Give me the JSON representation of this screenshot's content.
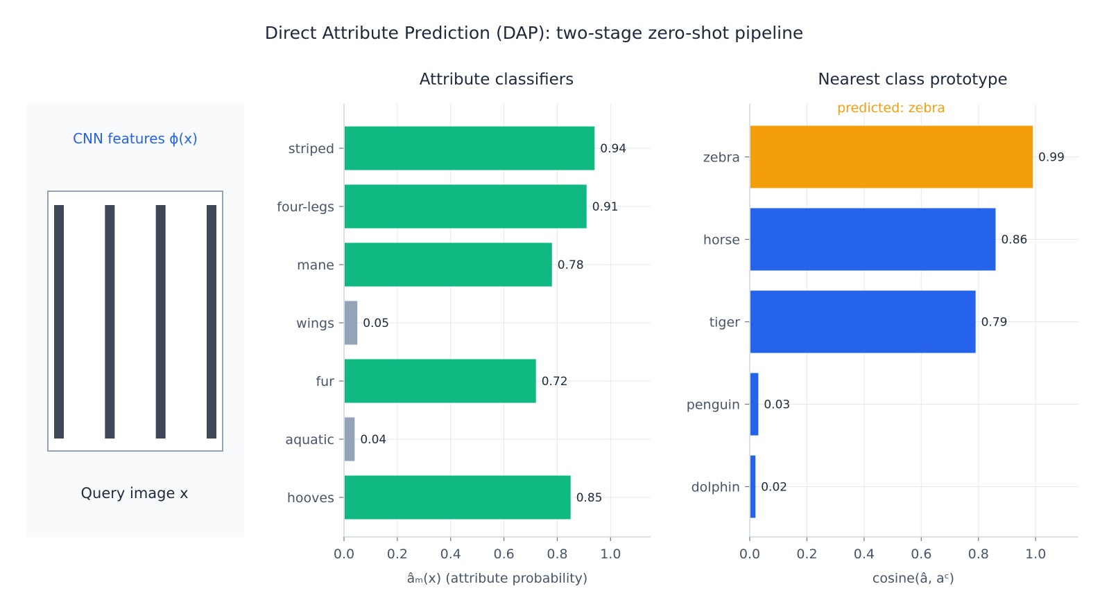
{
  "suptitle": "Direct Attribute Prediction (DAP): two-stage zero-shot pipeline",
  "query_panel": {
    "features_label": "CNN features ϕ(x)",
    "caption": "Query image x",
    "stripe_count": 4,
    "colors": {
      "background": "#f8fafc",
      "frame": "#94a3b8",
      "stripe": "#3f4856",
      "features_text": "#2563eb"
    }
  },
  "chart_data": [
    {
      "type": "bar",
      "orientation": "horizontal",
      "title": "Attribute classifiers",
      "xlabel": "âₘ(x) (attribute probability)",
      "categories": [
        "striped",
        "four-legs",
        "mane",
        "wings",
        "fur",
        "aquatic",
        "hooves"
      ],
      "values": [
        0.94,
        0.91,
        0.78,
        0.05,
        0.72,
        0.04,
        0.85
      ],
      "value_labels": [
        "0.94",
        "0.91",
        "0.78",
        "0.05",
        "0.72",
        "0.04",
        "0.85"
      ],
      "bar_colors": [
        "#10b981",
        "#10b981",
        "#10b981",
        "#94a3b8",
        "#10b981",
        "#94a3b8",
        "#10b981"
      ],
      "xlim": [
        0,
        1.15
      ],
      "xticks": [
        0.0,
        0.2,
        0.4,
        0.6,
        0.8,
        1.0
      ],
      "xtick_labels": [
        "0.0",
        "0.2",
        "0.4",
        "0.6",
        "0.8",
        "1.0"
      ],
      "grid": true
    },
    {
      "type": "bar",
      "orientation": "horizontal",
      "title": "Nearest class prototype",
      "xlabel": "cosine(â, aᶜ)",
      "annotation": "predicted: zebra",
      "annotation_color": "#f59e0b",
      "categories": [
        "zebra",
        "horse",
        "tiger",
        "penguin",
        "dolphin"
      ],
      "values": [
        0.99,
        0.86,
        0.79,
        0.03,
        0.02
      ],
      "value_labels": [
        "0.99",
        "0.86",
        "0.79",
        "0.03",
        "0.02"
      ],
      "bar_colors": [
        "#f59e0b",
        "#2563eb",
        "#2563eb",
        "#2563eb",
        "#2563eb"
      ],
      "xlim": [
        0,
        1.15
      ],
      "xticks": [
        0.0,
        0.2,
        0.4,
        0.6,
        0.8,
        1.0
      ],
      "xtick_labels": [
        "0.0",
        "0.2",
        "0.4",
        "0.6",
        "0.8",
        "1.0"
      ],
      "grid": true
    }
  ]
}
